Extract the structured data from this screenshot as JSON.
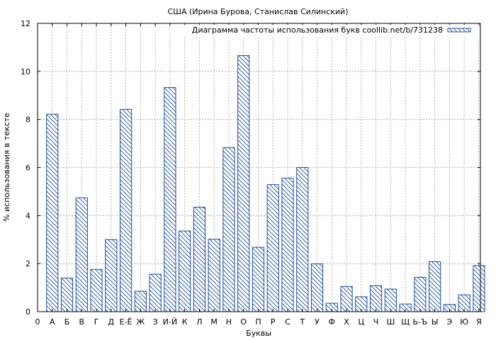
{
  "chart_data": {
    "type": "bar",
    "title": "США (Ирина Бурова, Станислав Силинский)",
    "xlabel": "Буквы",
    "ylabel": "% использования в тексте",
    "legend": "Диаграмма частоты использования букв coollib.net/b/731238",
    "legend_position": "top-right",
    "grid": true,
    "ylim": [
      0,
      12
    ],
    "yticks": [
      0,
      2,
      4,
      6,
      8,
      10,
      12
    ],
    "x_start_label": "0",
    "categories": [
      "А",
      "Б",
      "В",
      "Г",
      "Д",
      "Е-Ё",
      "Ж",
      "З",
      "И-Й",
      "К",
      "Л",
      "М",
      "Н",
      "О",
      "П",
      "Р",
      "С",
      "Т",
      "У",
      "Ф",
      "Х",
      "Ц",
      "Ч",
      "Ш",
      "Щ",
      "Ь-Ъ",
      "Ы",
      "Э",
      "Ю",
      "Я"
    ],
    "values": [
      8.22,
      1.4,
      4.74,
      1.76,
      3.0,
      8.42,
      0.85,
      1.56,
      9.33,
      3.36,
      4.35,
      3.02,
      6.83,
      10.66,
      2.68,
      5.29,
      5.56,
      6.0,
      1.99,
      0.35,
      1.05,
      0.62,
      1.08,
      0.94,
      0.32,
      1.43,
      2.08,
      0.3,
      0.7,
      1.92
    ],
    "colors": {
      "bar_stroke": "#1f4e9e",
      "hatch": "#1f4e9e",
      "grid": "#a0a0a0",
      "axis": "#000000"
    }
  }
}
